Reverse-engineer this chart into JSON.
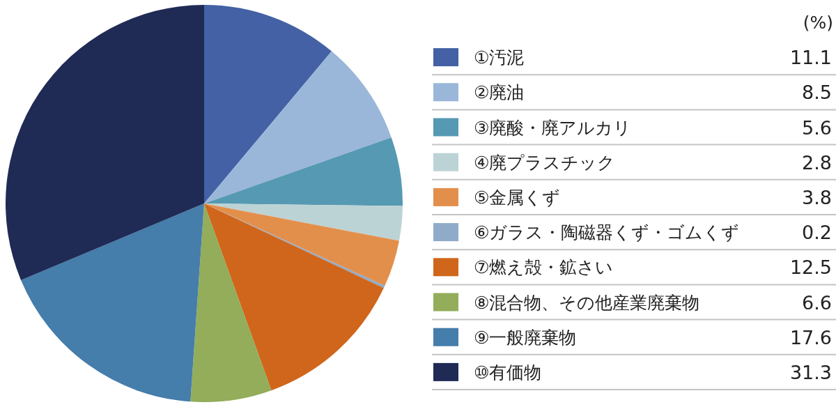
{
  "chart_data": {
    "type": "pie",
    "categories": [
      "①汚泥",
      "②廃油",
      "③廃酸・廃アルカリ",
      "④廃プラスチック",
      "⑤金属くず",
      "⑥ガラス・陶磁器くず・ゴムくず",
      "⑦燃え殻・鉱さい",
      "⑧混合物、その他産業廃棄物",
      "⑨一般廃棄物",
      "⑩有価物"
    ],
    "values": [
      11.1,
      8.5,
      5.6,
      2.8,
      3.8,
      0.2,
      12.5,
      6.6,
      17.6,
      31.3
    ],
    "colors": [
      "#4361a4",
      "#9ab6d9",
      "#5699b2",
      "#bcd3d5",
      "#e38f4c",
      "#8fabc9",
      "#d0661b",
      "#93ad5a",
      "#457dab",
      "#1f2b55"
    ],
    "legend": "right",
    "data_labels": true,
    "annotations": [
      "(%)"
    ]
  }
}
